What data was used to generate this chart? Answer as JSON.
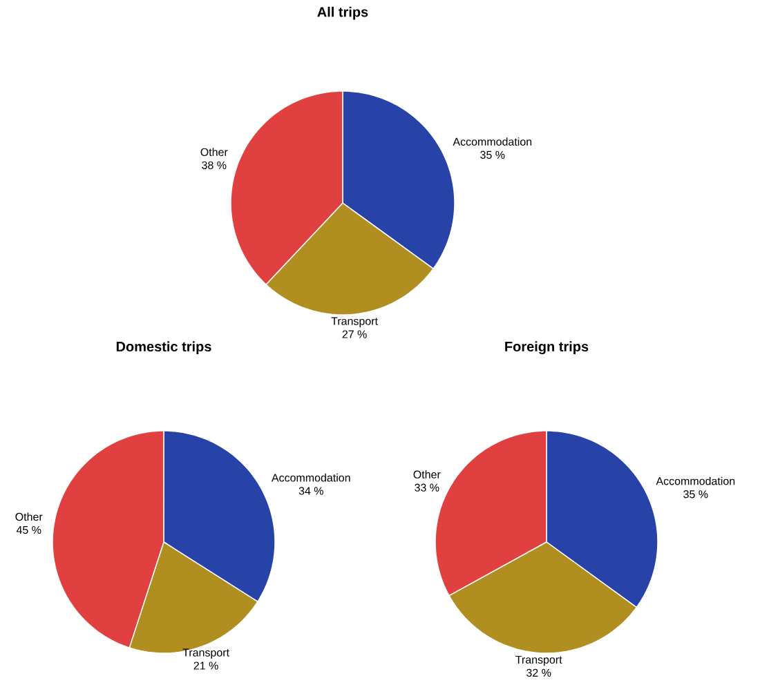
{
  "chart_data": [
    {
      "type": "pie",
      "title": "All trips",
      "categories": [
        "Accommodation",
        "Transport",
        "Other"
      ],
      "values": [
        35,
        27,
        38
      ],
      "colors": [
        "#2843a8",
        "#b08f20",
        "#e04040"
      ],
      "value_labels": [
        "35 %",
        "27 %",
        "38 %"
      ]
    },
    {
      "type": "pie",
      "title": "Domestic trips",
      "categories": [
        "Accommodation",
        "Transport",
        "Other"
      ],
      "values": [
        34,
        21,
        45
      ],
      "colors": [
        "#2843a8",
        "#b08f20",
        "#e04040"
      ],
      "value_labels": [
        "34 %",
        "21 %",
        "45 %"
      ]
    },
    {
      "type": "pie",
      "title": "Foreign trips",
      "categories": [
        "Accommodation",
        "Transport",
        "Other"
      ],
      "values": [
        35,
        32,
        33
      ],
      "colors": [
        "#2843a8",
        "#b08f20",
        "#e04040"
      ],
      "value_labels": [
        "35 %",
        "32 %",
        "33 %"
      ]
    }
  ]
}
